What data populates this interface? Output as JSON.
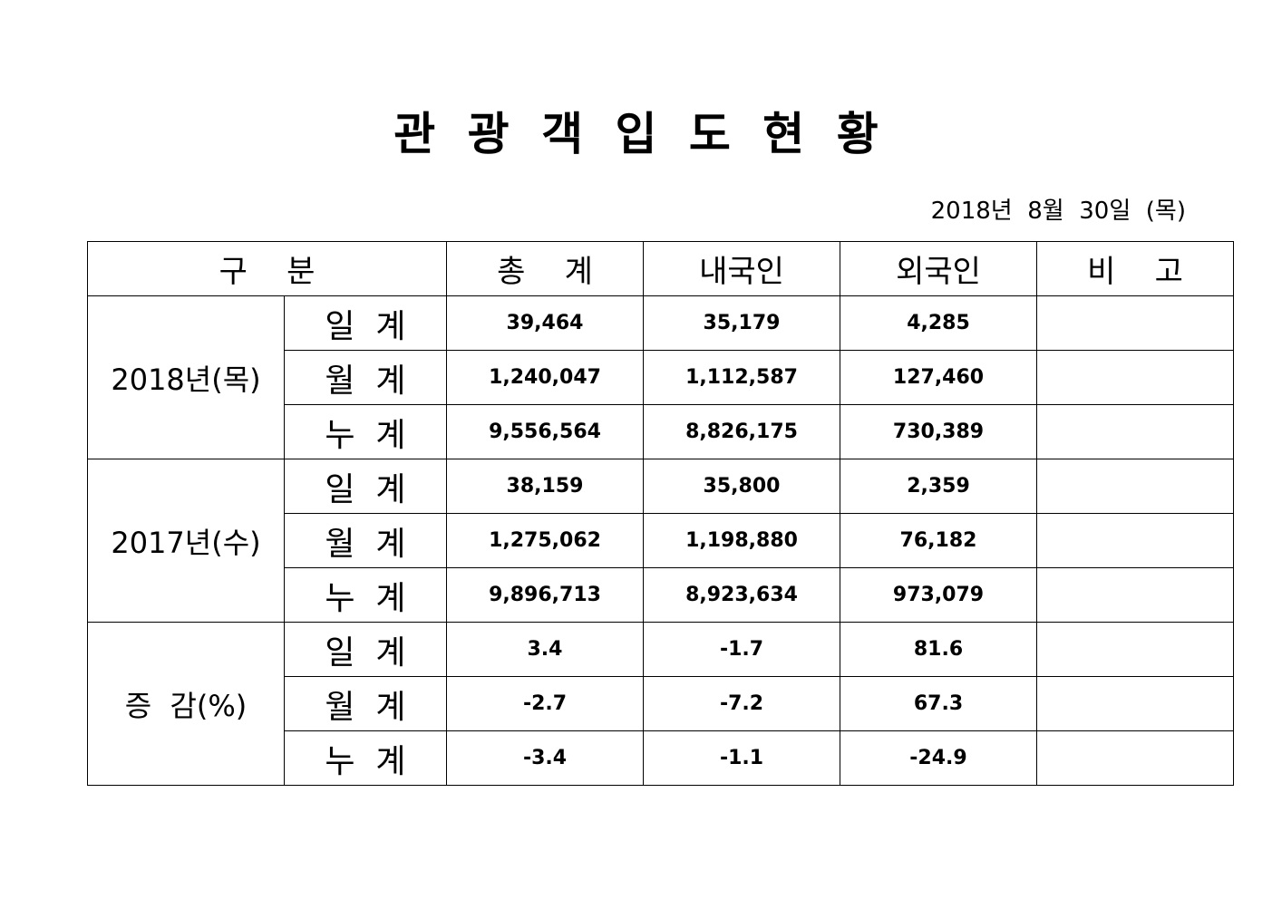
{
  "header": {
    "title": "관 광 객 입 도 현 황",
    "date": "2018년  8월  30일  (목)"
  },
  "table": {
    "columns": [
      "구    분",
      "총    계",
      "내국인",
      "외국인",
      "비    고"
    ],
    "groups": [
      {
        "label": "2018년(목)",
        "rows": [
          {
            "label": "일  계",
            "values": [
              "39,464",
              "35,179",
              "4,285"
            ]
          },
          {
            "label": "월  계",
            "values": [
              "1,240,047",
              "1,112,587",
              "127,460"
            ]
          },
          {
            "label": "누  계",
            "values": [
              "9,556,564",
              "8,826,175",
              "730,389"
            ]
          }
        ]
      },
      {
        "label": "2017년(수)",
        "rows": [
          {
            "label": "일  계",
            "values": [
              "38,159",
              "35,800",
              "2,359"
            ]
          },
          {
            "label": "월  계",
            "values": [
              "1,275,062",
              "1,198,880",
              "76,182"
            ]
          },
          {
            "label": "누  계",
            "values": [
              "9,896,713",
              "8,923,634",
              "973,079"
            ]
          }
        ]
      },
      {
        "label": "증  감(%)",
        "rows": [
          {
            "label": "일  계",
            "values": [
              "3.4",
              "-1.7",
              "81.6"
            ]
          },
          {
            "label": "월  계",
            "values": [
              "-2.7",
              "-7.2",
              "67.3"
            ]
          },
          {
            "label": "누  계",
            "values": [
              "-3.4",
              "-1.1",
              "-24.9"
            ]
          }
        ]
      }
    ]
  }
}
